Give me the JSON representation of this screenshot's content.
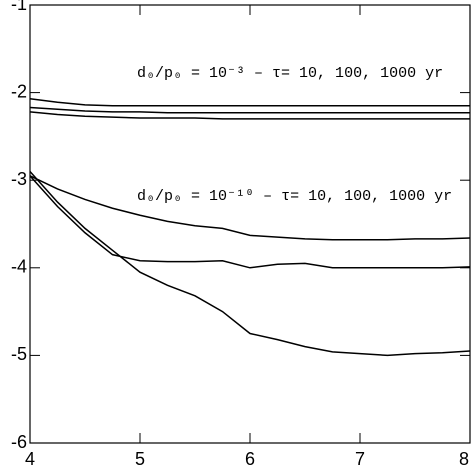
{
  "chart_data": {
    "type": "line",
    "x": [
      4,
      4.25,
      4.5,
      4.75,
      5,
      5.25,
      5.5,
      5.75,
      6,
      6.25,
      6.5,
      6.75,
      7,
      7.25,
      7.5,
      7.75,
      8
    ],
    "series": [
      {
        "color": "#000000",
        "values": [
          -2.07,
          -2.11,
          -2.14,
          -2.15,
          -2.15,
          -2.15,
          -2.15,
          -2.15,
          -2.15,
          -2.15,
          -2.15,
          -2.15,
          -2.15,
          -2.15,
          -2.15,
          -2.15,
          -2.15
        ]
      },
      {
        "color": "#000000",
        "values": [
          -2.17,
          -2.19,
          -2.21,
          -2.22,
          -2.22,
          -2.23,
          -2.23,
          -2.23,
          -2.23,
          -2.23,
          -2.23,
          -2.23,
          -2.23,
          -2.23,
          -2.23,
          -2.23,
          -2.23
        ]
      },
      {
        "color": "#000000",
        "values": [
          -2.22,
          -2.25,
          -2.27,
          -2.28,
          -2.29,
          -2.29,
          -2.29,
          -2.3,
          -2.3,
          -2.3,
          -2.3,
          -2.3,
          -2.3,
          -2.3,
          -2.3,
          -2.3,
          -2.3
        ]
      },
      {
        "color": "#000000",
        "values": [
          -2.95,
          -3.1,
          -3.22,
          -3.32,
          -3.4,
          -3.47,
          -3.52,
          -3.55,
          -3.63,
          -3.65,
          -3.67,
          -3.68,
          -3.68,
          -3.68,
          -3.67,
          -3.67,
          -3.66
        ]
      },
      {
        "color": "#000000",
        "values": [
          -2.95,
          -3.3,
          -3.6,
          -3.85,
          -3.92,
          -3.93,
          -3.93,
          -3.92,
          -4.0,
          -3.96,
          -3.95,
          -4.0,
          -4.0,
          -4.0,
          -4.0,
          -4.0,
          -3.99
        ]
      },
      {
        "color": "#000000",
        "values": [
          -2.9,
          -3.25,
          -3.55,
          -3.8,
          -4.05,
          -4.2,
          -4.32,
          -4.5,
          -4.75,
          -4.82,
          -4.9,
          -4.96,
          -4.98,
          -5.0,
          -4.98,
          -4.97,
          -4.95
        ]
      }
    ],
    "annotations": [
      "d₀/p₀ = 10⁻³ – τ= 10, 100, 1000 yr",
      "d₀/p₀ = 10⁻¹⁰ – τ= 10, 100, 1000 yr"
    ],
    "xlim": [
      4,
      8
    ],
    "xticks": [
      4,
      5,
      6,
      7,
      8
    ],
    "ylim": [
      -6,
      -1
    ],
    "yticks": [
      -6,
      -5,
      -4,
      -3,
      -2,
      -1
    ]
  }
}
